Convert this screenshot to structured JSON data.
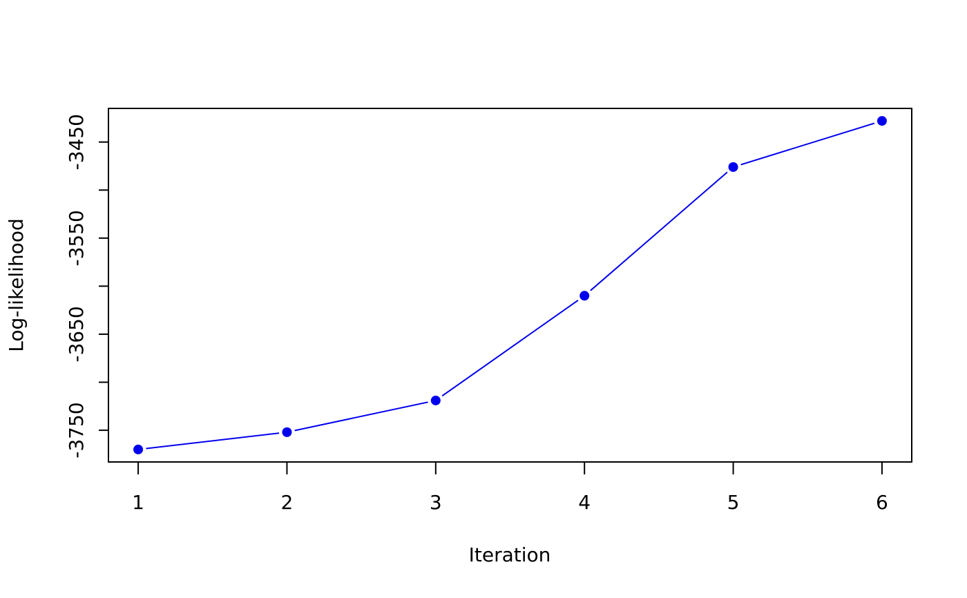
{
  "chart_data": {
    "type": "line",
    "xlabel": "Iteration",
    "ylabel": "Log-likelihood",
    "x": [
      1,
      2,
      3,
      4,
      5,
      6
    ],
    "values": [
      -3770,
      -3752,
      -3719,
      -3610,
      -3476,
      -3428
    ],
    "color": "#0000ee",
    "markers": true,
    "xlim": [
      0.8,
      6.2
    ],
    "ylim": [
      -3783,
      -3415
    ],
    "xticks": [
      1,
      2,
      3,
      4,
      5,
      6
    ],
    "yticks": [
      -3750,
      {
        "value": -3700,
        "label": null
      },
      -3650,
      {
        "value": -3600,
        "label": null
      },
      -3550,
      {
        "value": -3500,
        "label": null
      },
      -3450
    ],
    "grid": false
  }
}
